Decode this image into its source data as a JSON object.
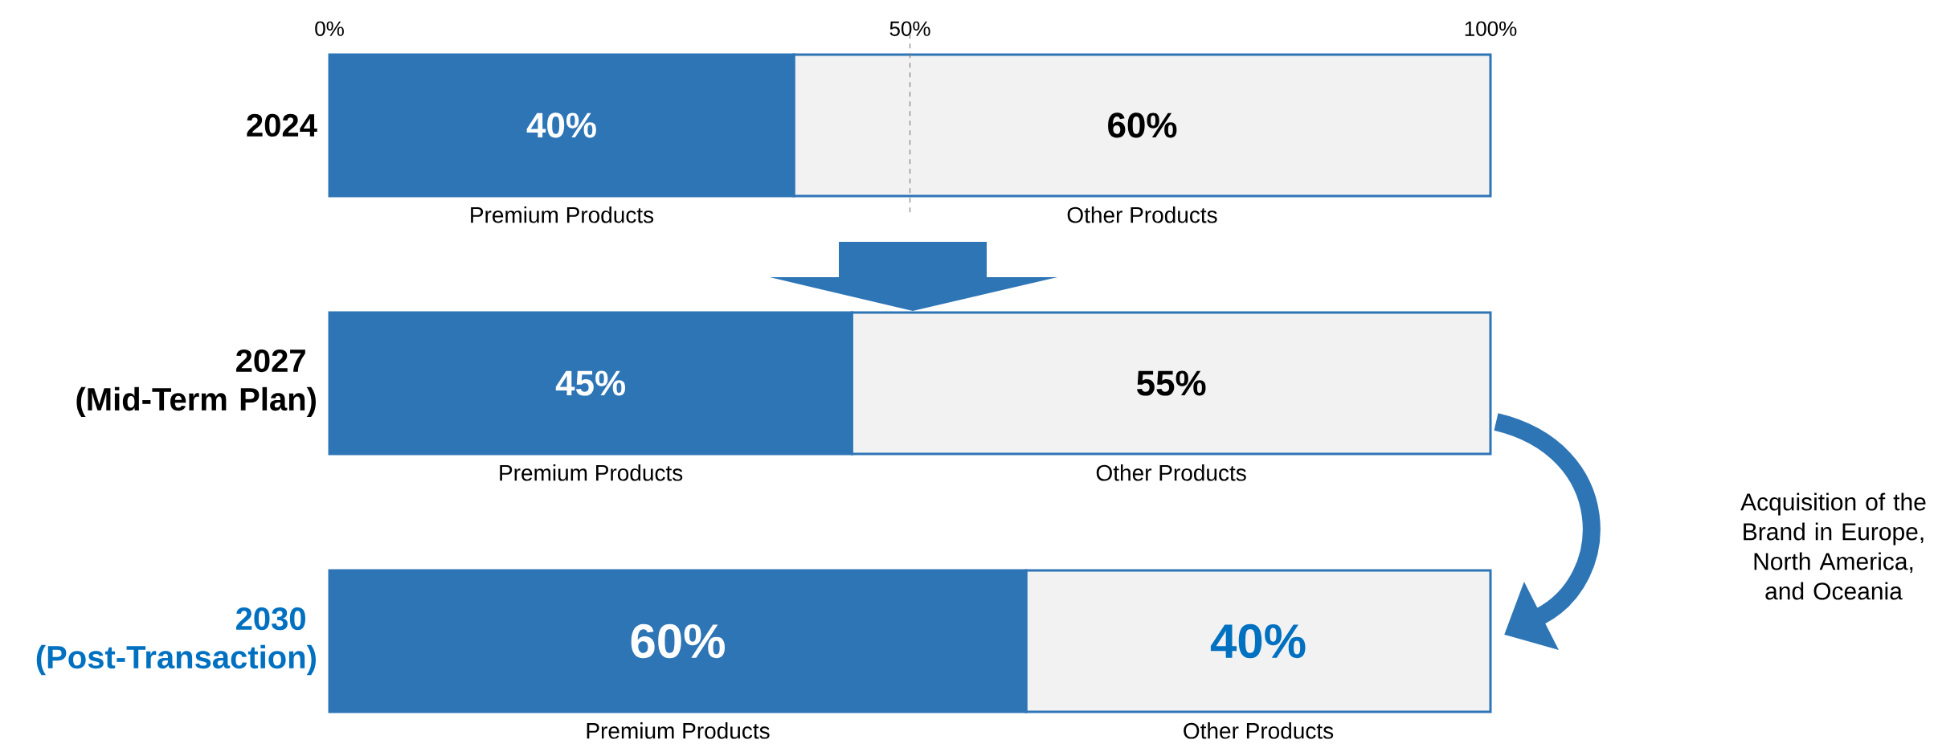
{
  "chart_data": {
    "type": "bar",
    "orientation": "horizontal",
    "stacked": true,
    "categories": [
      "2024",
      "2027 (Mid-Term Plan)",
      "2030 (Post-Transaction)"
    ],
    "series": [
      {
        "name": "Premium Products",
        "color": "#2e75b6",
        "values": [
          40,
          45,
          60
        ],
        "value_labels": [
          "40%",
          "45%",
          "60%"
        ]
      },
      {
        "name": "Other Products",
        "color": "#f2f2f2",
        "values": [
          60,
          55,
          40
        ],
        "value_labels": [
          "60%",
          "55%",
          "40%"
        ]
      }
    ],
    "xlim": [
      0,
      100
    ],
    "xticks": [
      {
        "value": 0,
        "label": "0%"
      },
      {
        "value": 50,
        "label": "50%"
      },
      {
        "value": 100,
        "label": "100%"
      }
    ],
    "ref_lines": [
      {
        "axis": "x",
        "value": 50,
        "color": "#808080",
        "line_style": "dashed"
      }
    ],
    "annotations": [
      "Acquisition of the Brand in Europe, North America, and Oceania"
    ]
  }
}
